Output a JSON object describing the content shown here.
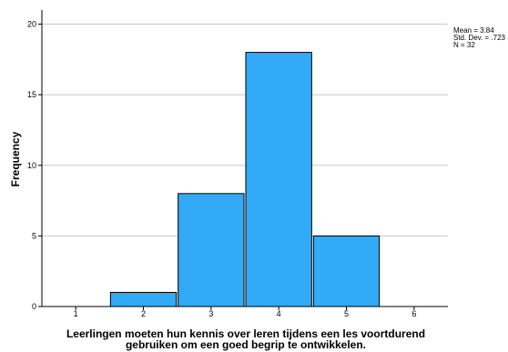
{
  "chart_data": {
    "type": "bar",
    "subtype": "histogram",
    "categories": [
      "2",
      "3",
      "4",
      "5"
    ],
    "values": [
      1,
      8,
      18,
      5
    ],
    "x_ticks": [
      "1",
      "2",
      "3",
      "4",
      "5",
      "6"
    ],
    "y_ticks": [
      "0",
      "5",
      "10",
      "15",
      "20"
    ],
    "xlim": [
      0.5,
      6.5
    ],
    "ylim": [
      0,
      21
    ],
    "ylabel": "Frequency",
    "xlabel_lines": [
      "Leerlingen moeten hun kennis over leren tijdens een les voortdurend",
      "gebruiken om een goed begrip te ontwikkelen."
    ],
    "stats": [
      "Mean = 3.84",
      "Std. Dev. = .723",
      "N = 32"
    ],
    "grid": "horizontal",
    "bar_color": "#33aaf5",
    "bar_edge_color": "#000000"
  }
}
